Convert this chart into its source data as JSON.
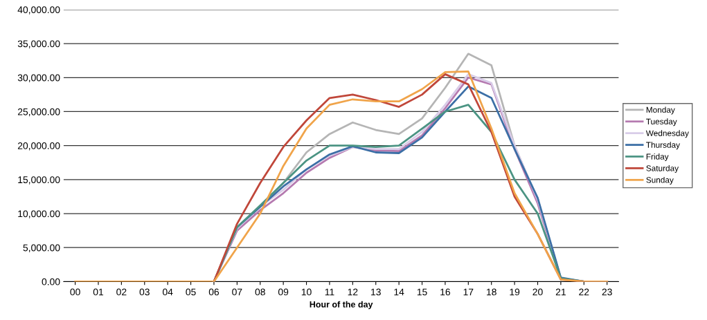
{
  "chart_data": {
    "type": "line",
    "xlabel": "Hour of the day",
    "categories": [
      "00",
      "01",
      "02",
      "03",
      "04",
      "05",
      "06",
      "07",
      "08",
      "09",
      "10",
      "11",
      "12",
      "13",
      "14",
      "15",
      "16",
      "17",
      "18",
      "19",
      "20",
      "21",
      "22",
      "23"
    ],
    "series": [
      {
        "name": "Monday",
        "color": "#b5b5b5",
        "values": [
          null,
          null,
          null,
          null,
          null,
          null,
          0,
          8000,
          11000,
          14500,
          19000,
          21700,
          23400,
          22300,
          21700,
          24000,
          28500,
          33500,
          31800,
          20000,
          12000,
          500,
          0,
          0
        ]
      },
      {
        "name": "Tuesday",
        "color": "#b57ab0",
        "values": [
          null,
          null,
          null,
          null,
          null,
          null,
          0,
          7500,
          10500,
          13000,
          16000,
          18200,
          19800,
          19300,
          19200,
          21500,
          25500,
          30000,
          29000,
          19500,
          11500,
          400,
          0,
          0
        ]
      },
      {
        "name": "Wednesday",
        "color": "#d8cce8",
        "values": [
          null,
          null,
          null,
          null,
          null,
          null,
          0,
          7800,
          11000,
          13500,
          16500,
          18500,
          19800,
          19500,
          19500,
          22000,
          26000,
          30500,
          29200,
          20000,
          12000,
          500,
          0,
          0
        ]
      },
      {
        "name": "Thursday",
        "color": "#3c6fa6",
        "values": [
          null,
          null,
          null,
          null,
          null,
          null,
          0,
          8000,
          11000,
          14000,
          16500,
          18700,
          19900,
          19000,
          18900,
          21200,
          25000,
          28700,
          27000,
          19500,
          12300,
          600,
          0,
          0
        ]
      },
      {
        "name": "Friday",
        "color": "#4b9483",
        "values": [
          null,
          null,
          null,
          null,
          null,
          null,
          0,
          8000,
          11200,
          14500,
          17800,
          20000,
          20000,
          19800,
          20000,
          22500,
          25000,
          26000,
          22000,
          15000,
          10000,
          500,
          0,
          0
        ]
      },
      {
        "name": "Saturday",
        "color": "#c0473a",
        "values": [
          null,
          null,
          null,
          null,
          null,
          null,
          0,
          8500,
          14500,
          19800,
          23700,
          27000,
          27500,
          26700,
          25700,
          27500,
          30500,
          29000,
          22000,
          12500,
          7000,
          300,
          0,
          0
        ]
      },
      {
        "name": "Sunday",
        "color": "#f0a44a",
        "values": [
          0,
          0,
          0,
          0,
          0,
          0,
          0,
          5000,
          10000,
          17000,
          22500,
          26000,
          26800,
          26500,
          26500,
          28300,
          30800,
          30900,
          22500,
          13000,
          7000,
          300,
          0,
          0
        ]
      }
    ],
    "ylim": [
      0,
      40000
    ],
    "yticks": [
      {
        "value": 0,
        "label": "0.00"
      },
      {
        "value": 5000,
        "label": "5,000.00"
      },
      {
        "value": 10000,
        "label": "10,000.00"
      },
      {
        "value": 15000,
        "label": "15,000.00"
      },
      {
        "value": 20000,
        "label": "20,000.00"
      },
      {
        "value": 25000,
        "label": "25,000.00"
      },
      {
        "value": 30000,
        "label": "30,000.00"
      },
      {
        "value": 35000,
        "label": "35,000.00"
      },
      {
        "value": 40000,
        "label": "40,000.00"
      }
    ],
    "grid": "y",
    "legend": "right",
    "marker": "none",
    "line_style": "solid"
  }
}
